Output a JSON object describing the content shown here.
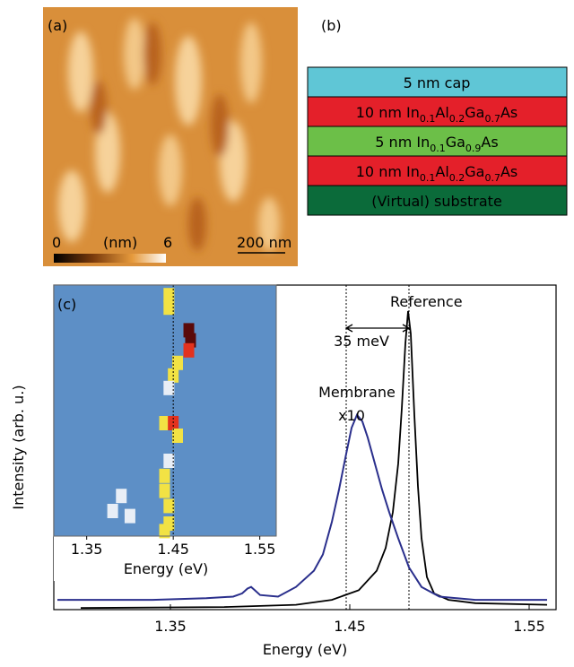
{
  "panel_a": {
    "label": "(a)",
    "scale_min": 0,
    "unit": "(nm)",
    "scale_max": 6,
    "scalebar": "200 nm"
  },
  "panel_b": {
    "label": "(b)",
    "layers": [
      {
        "parts": [
          "5 nm cap"
        ],
        "color": "#5fc6d6"
      },
      {
        "parts": [
          "10 nm In",
          "0.1",
          "Al",
          "0.2",
          "Ga",
          "0.7",
          "As"
        ],
        "color": "#e4202a"
      },
      {
        "parts": [
          "5 nm In",
          "0.1",
          "Ga",
          "0.9",
          "As"
        ],
        "color": "#6cbf48"
      },
      {
        "parts": [
          "10 nm In",
          "0.1",
          "Al",
          "0.2",
          "Ga",
          "0.7",
          "As"
        ],
        "color": "#e4202a"
      },
      {
        "parts": [
          "(Virtual) substrate"
        ],
        "color": "#0b6b3a"
      }
    ]
  },
  "chart_data": [
    {
      "type": "line",
      "panel_label": "(c)",
      "x_label": "Energy (eV)",
      "y_label": "Intensity (arb. u.)",
      "xlim": [
        1.285,
        1.565
      ],
      "ylim": [
        0,
        1
      ],
      "xticks": [
        1.35,
        1.45,
        1.55
      ],
      "vlines": [
        1.448,
        1.483
      ],
      "shift_label": "35 meV",
      "series": [
        {
          "name": "Reference",
          "color": "#000000",
          "x": [
            1.3,
            1.38,
            1.42,
            1.44,
            1.455,
            1.465,
            1.47,
            1.474,
            1.477,
            1.479,
            1.481,
            1.4825,
            1.484,
            1.486,
            1.488,
            1.49,
            1.493,
            1.497,
            1.505,
            1.52,
            1.56
          ],
          "values": [
            0.005,
            0.008,
            0.015,
            0.03,
            0.06,
            0.12,
            0.19,
            0.3,
            0.45,
            0.62,
            0.82,
            0.92,
            0.85,
            0.6,
            0.38,
            0.22,
            0.1,
            0.05,
            0.03,
            0.02,
            0.015
          ]
        },
        {
          "name": "Membrane",
          "scale_label": "x10",
          "color": "#2a2f8c",
          "x": [
            1.287,
            1.31,
            1.34,
            1.37,
            1.385,
            1.39,
            1.393,
            1.395,
            1.397,
            1.4,
            1.41,
            1.42,
            1.43,
            1.435,
            1.44,
            1.444,
            1.448,
            1.451,
            1.454,
            1.457,
            1.46,
            1.464,
            1.468,
            1.472,
            1.477,
            1.483,
            1.49,
            1.5,
            1.52,
            1.56
          ],
          "values": [
            0.03,
            0.03,
            0.03,
            0.035,
            0.04,
            0.05,
            0.065,
            0.07,
            0.06,
            0.045,
            0.04,
            0.07,
            0.12,
            0.17,
            0.27,
            0.37,
            0.48,
            0.56,
            0.6,
            0.58,
            0.53,
            0.45,
            0.37,
            0.3,
            0.22,
            0.13,
            0.07,
            0.04,
            0.03,
            0.03
          ]
        }
      ]
    },
    {
      "type": "heatmap",
      "x_label": "Energy (eV)",
      "xlim": [
        1.312,
        1.569
      ],
      "ylim": [
        0,
        1
      ],
      "xticks": [
        1.35,
        1.45,
        1.55
      ],
      "vline": 1.45,
      "x": [
        1.445,
        1.445,
        1.468,
        1.47,
        1.468,
        1.455,
        1.45,
        1.445,
        1.44,
        1.45,
        1.455,
        1.445,
        1.44,
        1.44,
        1.445,
        1.39,
        1.38,
        1.4,
        1.445,
        1.44
      ],
      "y": [
        0.04,
        0.09,
        0.18,
        0.22,
        0.26,
        0.31,
        0.36,
        0.41,
        0.55,
        0.55,
        0.6,
        0.7,
        0.76,
        0.82,
        0.88,
        0.84,
        0.9,
        0.92,
        0.95,
        0.98
      ],
      "values": [
        0.5,
        0.45,
        0.9,
        1.0,
        0.8,
        0.5,
        0.4,
        0.3,
        0.55,
        0.85,
        0.4,
        0.3,
        0.5,
        0.55,
        0.5,
        0.25,
        0.2,
        0.25,
        0.45,
        0.4
      ]
    }
  ]
}
